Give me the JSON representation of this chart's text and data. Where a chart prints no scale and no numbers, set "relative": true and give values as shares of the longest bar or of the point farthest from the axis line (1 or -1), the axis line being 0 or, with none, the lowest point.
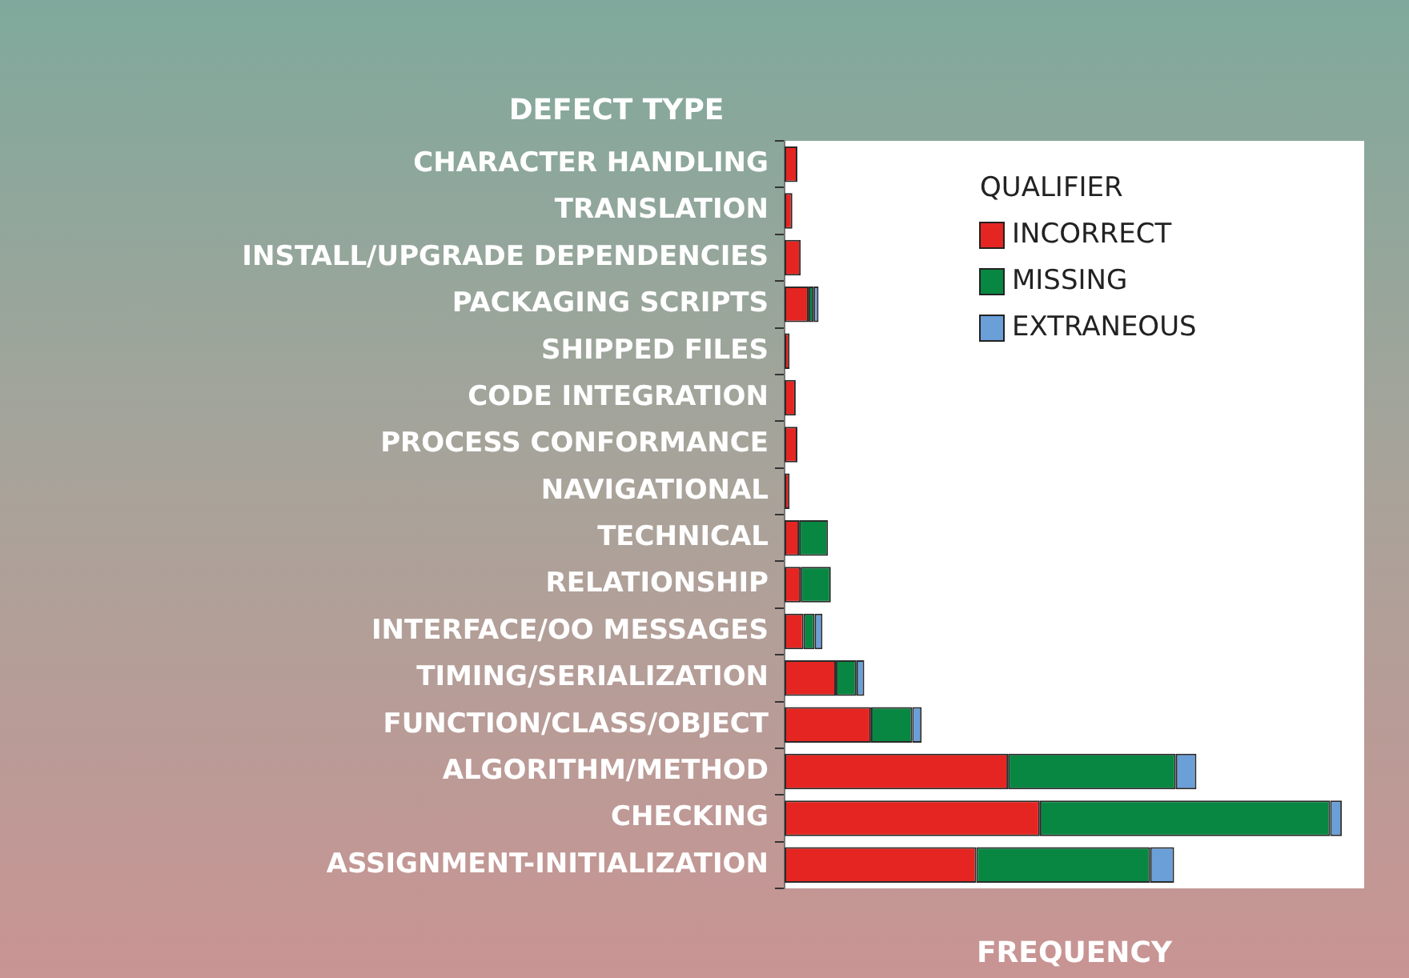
{
  "chart_data": {
    "type": "bar",
    "orientation": "horizontal",
    "stacked": true,
    "relative": true,
    "ylabel": "DEFECT TYPE",
    "xlabel": "FREQUENCY",
    "legend_title": "QUALIFIER",
    "legend": "top right",
    "grid": false,
    "categories": [
      "CHARACTER HANDLING",
      "TRANSLATION",
      "INSTALL/UPGRADE DEPENDENCIES",
      "PACKAGING SCRIPTS",
      "SHIPPED FILES",
      "CODE INTEGRATION",
      "PROCESS CONFORMANCE",
      "NAVIGATIONAL",
      "TECHNICAL",
      "RELATIONSHIP",
      "INTERFACE/OO MESSAGES",
      "TIMING/SERIALIZATION",
      "FUNCTION/CLASS/OBJECT",
      "ALGORITHM/METHOD",
      "CHECKING",
      "ASSIGNMENT-INITIALIZATION"
    ],
    "series": [
      {
        "name": "INCORRECT",
        "color": "#e52521",
        "values": [
          0.023,
          0.014,
          0.029,
          0.043,
          0.009,
          0.02,
          0.023,
          0.009,
          0.026,
          0.029,
          0.034,
          0.092,
          0.155,
          0.401,
          0.458,
          0.344
        ]
      },
      {
        "name": "MISSING",
        "color": "#088742",
        "values": [
          null,
          null,
          null,
          0.009,
          null,
          null,
          null,
          null,
          0.052,
          0.054,
          0.02,
          0.037,
          0.074,
          0.301,
          0.521,
          0.312
        ]
      },
      {
        "name": "EXTRANEOUS",
        "color": "#6a9fd8",
        "values": [
          null,
          null,
          null,
          0.009,
          null,
          null,
          null,
          null,
          null,
          null,
          0.014,
          0.014,
          0.017,
          0.037,
          0.021,
          0.043
        ]
      }
    ]
  }
}
